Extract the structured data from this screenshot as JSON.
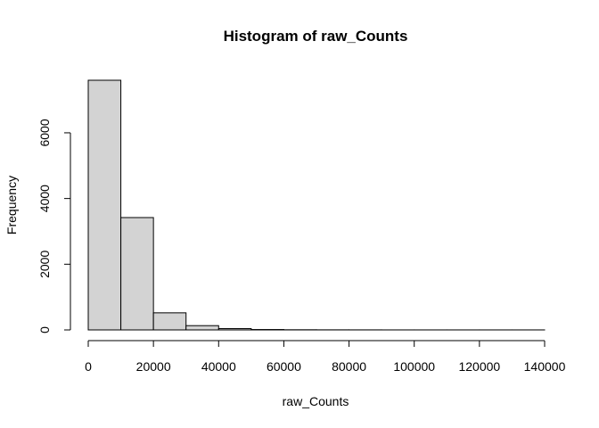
{
  "chart_data": {
    "type": "bar",
    "title": "Histogram of raw_Counts",
    "xlabel": "raw_Counts",
    "ylabel": "Frequency",
    "bins": [
      {
        "start": 0,
        "end": 10000,
        "count": 7600
      },
      {
        "start": 10000,
        "end": 20000,
        "count": 3420
      },
      {
        "start": 20000,
        "end": 30000,
        "count": 520
      },
      {
        "start": 30000,
        "end": 40000,
        "count": 130
      },
      {
        "start": 40000,
        "end": 50000,
        "count": 40
      },
      {
        "start": 50000,
        "end": 60000,
        "count": 12
      },
      {
        "start": 60000,
        "end": 70000,
        "count": 5
      },
      {
        "start": 70000,
        "end": 80000,
        "count": 3
      },
      {
        "start": 80000,
        "end": 90000,
        "count": 2
      },
      {
        "start": 90000,
        "end": 100000,
        "count": 1
      },
      {
        "start": 100000,
        "end": 110000,
        "count": 1
      },
      {
        "start": 110000,
        "end": 120000,
        "count": 1
      },
      {
        "start": 120000,
        "end": 130000,
        "count": 1
      },
      {
        "start": 130000,
        "end": 140000,
        "count": 1
      }
    ],
    "xlim": [
      0,
      140000
    ],
    "ylim": [
      0,
      7600
    ],
    "x_ticks": [
      0,
      20000,
      40000,
      60000,
      80000,
      100000,
      120000,
      140000
    ],
    "y_ticks": [
      0,
      2000,
      4000,
      6000
    ],
    "bar_fill": "#d3d3d3",
    "bar_stroke": "#000000",
    "grid": false
  }
}
